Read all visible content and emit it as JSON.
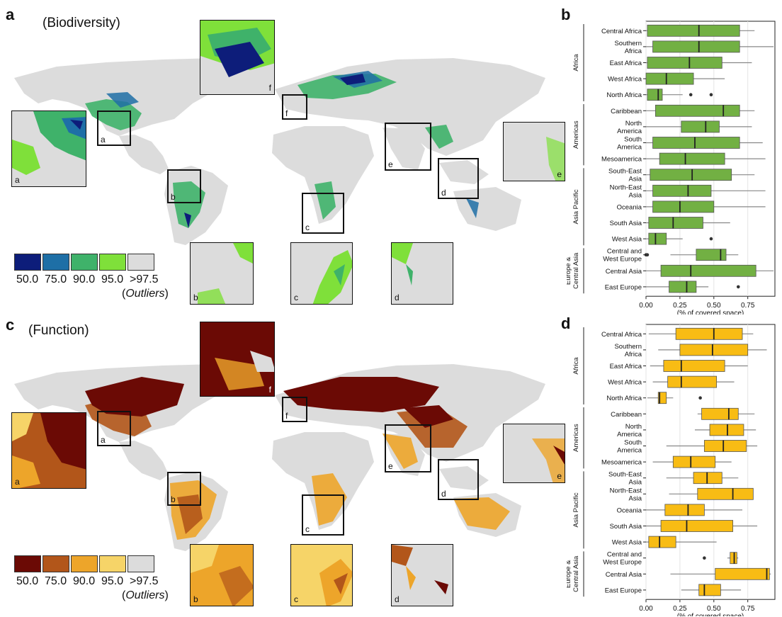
{
  "panels": {
    "a": {
      "letter": "a",
      "title": "(Biodiversity)"
    },
    "b": {
      "letter": "b"
    },
    "c": {
      "letter": "c",
      "title": "(Function)"
    },
    "d": {
      "letter": "d"
    }
  },
  "insets": {
    "a": "a",
    "b": "b",
    "c": "c",
    "d": "d",
    "e": "e",
    "f": "f"
  },
  "legend_biodiversity": {
    "labels": [
      "50.0",
      "75.0",
      "90.0",
      "95.0",
      ">97.5"
    ],
    "colors": [
      "#0d1d7a",
      "#1e6fa6",
      "#3fb26a",
      "#7fe03a",
      "#dcdcdc"
    ],
    "outliers_open": "(",
    "outliers_word": "Outliers",
    "outliers_close": ")"
  },
  "legend_function": {
    "labels": [
      "50.0",
      "75.0",
      "90.0",
      "95.0",
      ">97.5"
    ],
    "colors": [
      "#6b0a05",
      "#b2561a",
      "#eda52a",
      "#f6d468",
      "#dcdcdc"
    ],
    "outliers_open": "(",
    "outliers_word": "Outliers",
    "outliers_close": ")"
  },
  "chart_data": [
    {
      "type": "box",
      "panel": "b",
      "xlabel": "(% of covered space)",
      "xlim": [
        0,
        0.95
      ],
      "ticks": [
        0,
        0.25,
        0.5,
        0.75
      ],
      "tick_labels": [
        "0.00",
        "0.25",
        "0.50",
        "0.75"
      ],
      "fill": "#72b043",
      "groups": [
        {
          "name": "Africa",
          "rows": [
            {
              "label": [
                "Central Africa"
              ],
              "whisker": [
                0.0,
                0.8
              ],
              "q1": 0.01,
              "median": 0.39,
              "q3": 0.69,
              "outliers": []
            },
            {
              "label": [
                "Southern",
                "Africa"
              ],
              "whisker": [
                0.0,
                0.94
              ],
              "q1": 0.05,
              "median": 0.39,
              "q3": 0.69,
              "outliers": []
            },
            {
              "label": [
                "East Africa"
              ],
              "whisker": [
                0.0,
                0.78
              ],
              "q1": 0.01,
              "median": 0.32,
              "q3": 0.56,
              "outliers": []
            },
            {
              "label": [
                "West Africa"
              ],
              "whisker": [
                0.0,
                0.58
              ],
              "q1": 0.0,
              "median": 0.15,
              "q3": 0.35,
              "outliers": []
            },
            {
              "label": [
                "North Africa"
              ],
              "whisker": [
                0.0,
                0.27
              ],
              "q1": 0.01,
              "median": 0.09,
              "q3": 0.12,
              "outliers": [
                0.33,
                0.48
              ]
            }
          ]
        },
        {
          "name": "Americas",
          "rows": [
            {
              "label": [
                "Caribbean"
              ],
              "whisker": [
                0.0,
                0.8
              ],
              "q1": 0.07,
              "median": 0.57,
              "q3": 0.69,
              "outliers": []
            },
            {
              "label": [
                "North",
                "America"
              ],
              "whisker": [
                0.0,
                0.78
              ],
              "q1": 0.26,
              "median": 0.44,
              "q3": 0.54,
              "outliers": []
            },
            {
              "label": [
                "South",
                "America"
              ],
              "whisker": [
                0.0,
                0.86
              ],
              "q1": 0.05,
              "median": 0.36,
              "q3": 0.69,
              "outliers": []
            },
            {
              "label": [
                "Mesoamerica"
              ],
              "whisker": [
                0.0,
                0.88
              ],
              "q1": 0.1,
              "median": 0.29,
              "q3": 0.58,
              "outliers": []
            }
          ]
        },
        {
          "name": "Asia Pacific",
          "rows": [
            {
              "label": [
                "South-East",
                "Asia"
              ],
              "whisker": [
                0.0,
                0.8
              ],
              "q1": 0.03,
              "median": 0.34,
              "q3": 0.63,
              "outliers": []
            },
            {
              "label": [
                "North-East",
                "Asia"
              ],
              "whisker": [
                0.0,
                0.88
              ],
              "q1": 0.05,
              "median": 0.31,
              "q3": 0.48,
              "outliers": []
            },
            {
              "label": [
                "Oceania"
              ],
              "whisker": [
                0.0,
                0.88
              ],
              "q1": 0.05,
              "median": 0.25,
              "q3": 0.5,
              "outliers": []
            },
            {
              "label": [
                "South Asia"
              ],
              "whisker": [
                0.0,
                0.62
              ],
              "q1": 0.02,
              "median": 0.2,
              "q3": 0.42,
              "outliers": []
            },
            {
              "label": [
                "West Asia"
              ],
              "whisker": [
                0.0,
                0.27
              ],
              "q1": 0.02,
              "median": 0.07,
              "q3": 0.15,
              "outliers": [
                0.48
              ]
            }
          ]
        },
        {
          "name": "Europe & Central Asia",
          "group_lines": [
            "Europe &",
            "Central Asia"
          ],
          "rows": [
            {
              "label": [
                "Central and",
                "West Europe"
              ],
              "whisker": [
                0.18,
                0.68
              ],
              "q1": 0.37,
              "median": 0.55,
              "q3": 0.59,
              "outliers": [
                0.0,
                0.01
              ]
            },
            {
              "label": [
                "Central Asia"
              ],
              "whisker": [
                0.0,
                0.94
              ],
              "q1": 0.11,
              "median": 0.33,
              "q3": 0.81,
              "outliers": []
            },
            {
              "label": [
                "East Europe"
              ],
              "whisker": [
                0.0,
                0.46
              ],
              "q1": 0.17,
              "median": 0.3,
              "q3": 0.37,
              "outliers": [
                0.68
              ]
            }
          ]
        }
      ]
    },
    {
      "type": "box",
      "panel": "d",
      "xlabel": "(% of covered space)",
      "xlim": [
        0,
        0.95
      ],
      "ticks": [
        0,
        0.25,
        0.5,
        0.75
      ],
      "tick_labels": [
        "0.00",
        "0.25",
        "0.50",
        "0.75"
      ],
      "fill": "#f8bc14",
      "groups": [
        {
          "name": "Africa",
          "rows": [
            {
              "label": [
                "Central Africa"
              ],
              "whisker": [
                0.02,
                0.79
              ],
              "q1": 0.22,
              "median": 0.5,
              "q3": 0.71,
              "outliers": []
            },
            {
              "label": [
                "Southern",
                "Africa"
              ],
              "whisker": [
                0.09,
                0.89
              ],
              "q1": 0.25,
              "median": 0.49,
              "q3": 0.75,
              "outliers": []
            },
            {
              "label": [
                "East Africa"
              ],
              "whisker": [
                0.03,
                0.75
              ],
              "q1": 0.13,
              "median": 0.26,
              "q3": 0.58,
              "outliers": []
            },
            {
              "label": [
                "West Africa"
              ],
              "whisker": [
                0.05,
                0.65
              ],
              "q1": 0.16,
              "median": 0.26,
              "q3": 0.52,
              "outliers": []
            },
            {
              "label": [
                "North Africa"
              ],
              "whisker": [
                0.01,
                0.2
              ],
              "q1": 0.09,
              "median": 0.1,
              "q3": 0.15,
              "outliers": [
                0.4
              ]
            }
          ]
        },
        {
          "name": "Americas",
          "rows": [
            {
              "label": [
                "Caribbean"
              ],
              "whisker": [
                0.38,
                0.8
              ],
              "q1": 0.41,
              "median": 0.61,
              "q3": 0.68,
              "outliers": []
            },
            {
              "label": [
                "North",
                "America"
              ],
              "whisker": [
                0.36,
                0.81
              ],
              "q1": 0.47,
              "median": 0.6,
              "q3": 0.72,
              "outliers": []
            },
            {
              "label": [
                "South",
                "America"
              ],
              "whisker": [
                0.15,
                0.82
              ],
              "q1": 0.43,
              "median": 0.57,
              "q3": 0.74,
              "outliers": []
            },
            {
              "label": [
                "Mesoamerica"
              ],
              "whisker": [
                0.05,
                0.63
              ],
              "q1": 0.2,
              "median": 0.33,
              "q3": 0.51,
              "outliers": []
            }
          ]
        },
        {
          "name": "Asia Pacific",
          "rows": [
            {
              "label": [
                "South-East",
                "Asia"
              ],
              "whisker": [
                0.15,
                0.68
              ],
              "q1": 0.35,
              "median": 0.45,
              "q3": 0.56,
              "outliers": []
            },
            {
              "label": [
                "North-East",
                "Asia"
              ],
              "whisker": [
                0.17,
                0.79
              ],
              "q1": 0.38,
              "median": 0.64,
              "q3": 0.79,
              "outliers": []
            },
            {
              "label": [
                "Oceania"
              ],
              "whisker": [
                0.0,
                0.71
              ],
              "q1": 0.14,
              "median": 0.31,
              "q3": 0.43,
              "outliers": []
            },
            {
              "label": [
                "South Asia"
              ],
              "whisker": [
                0.0,
                0.82
              ],
              "q1": 0.11,
              "median": 0.3,
              "q3": 0.64,
              "outliers": []
            },
            {
              "label": [
                "West Asia"
              ],
              "whisker": [
                0.0,
                0.52
              ],
              "q1": 0.02,
              "median": 0.1,
              "q3": 0.22,
              "outliers": []
            }
          ]
        },
        {
          "name": "Europe & Central Asia",
          "group_lines": [
            "Europe &",
            "Central Asia"
          ],
          "rows": [
            {
              "label": [
                "Central and",
                "West Europe"
              ],
              "whisker": [
                0.6,
                0.68
              ],
              "q1": 0.62,
              "median": 0.65,
              "q3": 0.67,
              "outliers": [
                0.43
              ]
            },
            {
              "label": [
                "Central Asia"
              ],
              "whisker": [
                0.18,
                0.92
              ],
              "q1": 0.51,
              "median": 0.89,
              "q3": 0.91,
              "outliers": []
            },
            {
              "label": [
                "East Europe"
              ],
              "whisker": [
                0.26,
                0.7
              ],
              "q1": 0.39,
              "median": 0.43,
              "q3": 0.55,
              "outliers": []
            }
          ]
        }
      ]
    }
  ]
}
